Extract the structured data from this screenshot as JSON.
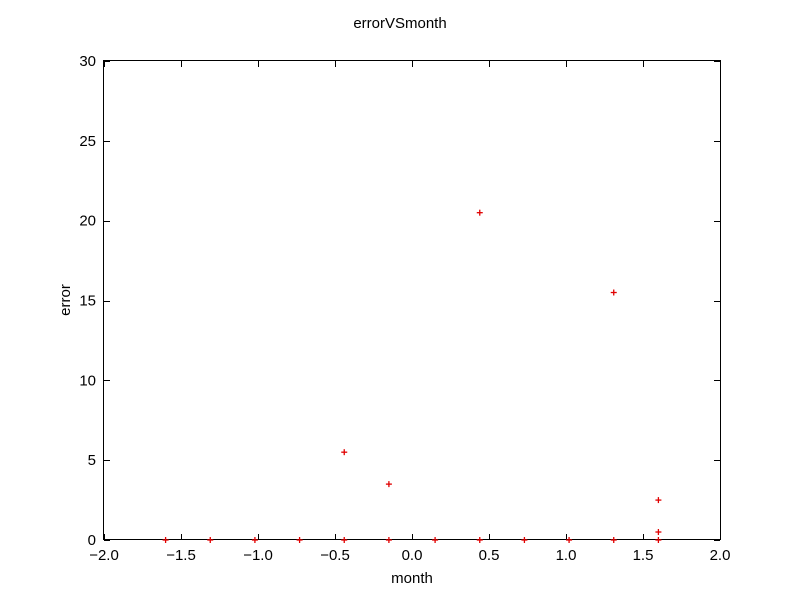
{
  "chart_data": {
    "type": "scatter",
    "title": "errorVSmonth",
    "xlabel": "month",
    "ylabel": "error",
    "xlim": [
      -2.0,
      2.0
    ],
    "ylim": [
      0,
      30
    ],
    "xticks": [
      "−2.0",
      "−1.5",
      "−1.0",
      "−0.5",
      "0.0",
      "0.5",
      "1.0",
      "1.5",
      "2.0"
    ],
    "yticks": [
      "0",
      "5",
      "10",
      "15",
      "20",
      "25",
      "30"
    ],
    "xtick_values": [
      -2.0,
      -1.5,
      -1.0,
      -0.5,
      0.0,
      0.5,
      1.0,
      1.5,
      2.0
    ],
    "ytick_values": [
      0,
      5,
      10,
      15,
      20,
      25,
      30
    ],
    "grid": false,
    "marker": "+",
    "series": [
      {
        "color": "#e00000",
        "points": [
          {
            "x": -1.6,
            "y": 0
          },
          {
            "x": -1.31,
            "y": 0
          },
          {
            "x": -1.02,
            "y": 0
          },
          {
            "x": -0.73,
            "y": 0
          },
          {
            "x": -0.44,
            "y": 0
          },
          {
            "x": -0.44,
            "y": 5.5
          },
          {
            "x": -0.15,
            "y": 0
          },
          {
            "x": -0.15,
            "y": 3.5
          },
          {
            "x": 0.15,
            "y": 0
          },
          {
            "x": 0.44,
            "y": 0
          },
          {
            "x": 0.44,
            "y": 20.5
          },
          {
            "x": 0.73,
            "y": 0
          },
          {
            "x": 1.02,
            "y": 0
          },
          {
            "x": 1.31,
            "y": 0
          },
          {
            "x": 1.31,
            "y": 15.5
          },
          {
            "x": 1.6,
            "y": 0
          },
          {
            "x": 1.6,
            "y": 0.5
          },
          {
            "x": 1.6,
            "y": 2.5
          }
        ]
      }
    ]
  }
}
